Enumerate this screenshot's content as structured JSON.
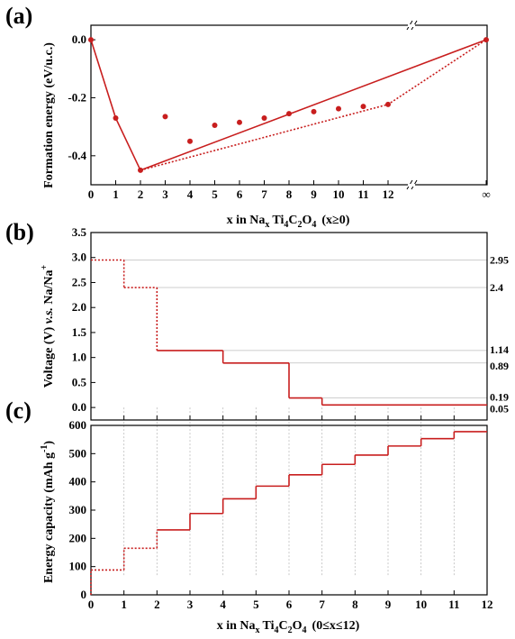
{
  "colors": {
    "series": "#c81e1e",
    "axis": "#000000",
    "grid": "#bdbdbd"
  },
  "chart_data": [
    {
      "id": "a",
      "type": "scatter",
      "panel_label": "(a)",
      "xlabel": {
        "pre": "x in Na",
        "x": "x",
        "ti": "Ti",
        "four": "4",
        "c": "C",
        "two": "2",
        "o": "O",
        "four2": "4",
        "post": "(x≥0)"
      },
      "ylabel": "Formation energy (eV/u.c.)",
      "xlim": [
        0,
        12
      ],
      "ylim": [
        -0.5,
        0.05
      ],
      "xticks": [
        "0",
        "1",
        "2",
        "3",
        "4",
        "5",
        "6",
        "7",
        "8",
        "9",
        "10",
        "11",
        "12"
      ],
      "xtick_inf": "∞",
      "yticks": [
        {
          "v": 0.0,
          "label": "0.0"
        },
        {
          "v": -0.2,
          "label": "-0.2"
        },
        {
          "v": -0.4,
          "label": "-0.4"
        }
      ],
      "points": [
        {
          "x": 0,
          "y": 0.0
        },
        {
          "x": 1,
          "y": -0.27
        },
        {
          "x": 2,
          "y": -0.45
        },
        {
          "x": 3,
          "y": -0.265
        },
        {
          "x": 4,
          "y": -0.35
        },
        {
          "x": 5,
          "y": -0.295
        },
        {
          "x": 6,
          "y": -0.285
        },
        {
          "x": 7,
          "y": -0.27
        },
        {
          "x": 8,
          "y": -0.255
        },
        {
          "x": 9,
          "y": -0.248
        },
        {
          "x": 10,
          "y": -0.238
        },
        {
          "x": 11,
          "y": -0.23
        },
        {
          "x": 12,
          "y": -0.223
        },
        {
          "x": "inf",
          "y": 0.0
        }
      ],
      "hull_solid": [
        [
          0,
          0.0
        ],
        [
          1,
          -0.27
        ],
        [
          2,
          -0.45
        ],
        [
          "inf",
          0.0
        ]
      ],
      "hull_dotted": [
        [
          2,
          -0.45
        ],
        [
          12,
          -0.223
        ],
        [
          "inf",
          0.0
        ]
      ]
    },
    {
      "id": "b",
      "type": "line",
      "panel_label": "(b)",
      "ylabel": {
        "pre": "Voltage (V) ",
        "vs": "v.s.",
        "post": " Na/Na",
        "sup": "+"
      },
      "xlim": [
        0,
        12
      ],
      "ylim": [
        -0.25,
        3.5
      ],
      "yticks": [
        "0.0",
        "0.5",
        "1.0",
        "1.5",
        "2.0",
        "2.5",
        "3.0",
        "3.5"
      ],
      "steps": [
        {
          "x0": 0,
          "x1": 1,
          "v": 2.95,
          "style": "dotted"
        },
        {
          "x0": 1,
          "x1": 2,
          "v": 2.4,
          "style": "dotted"
        },
        {
          "x0": 2,
          "x1": 4,
          "v": 1.14,
          "style": "solid"
        },
        {
          "x0": 4,
          "x1": 6,
          "v": 0.89,
          "style": "solid"
        },
        {
          "x0": 6,
          "x1": 7,
          "v": 0.19,
          "style": "solid"
        },
        {
          "x0": 7,
          "x1": 12,
          "v": 0.05,
          "style": "solid"
        }
      ],
      "right_labels": [
        "2.95",
        "2.4",
        "1.14",
        "0.89",
        "0.19",
        "0.05"
      ]
    },
    {
      "id": "c",
      "type": "line",
      "panel_label": "(c)",
      "xlabel": {
        "pre": "x in Na",
        "x": "x",
        "ti": "Ti",
        "four": "4",
        "c": "C",
        "two": "2",
        "o": "O",
        "four2": "4",
        "post": "(0≤x≤12)"
      },
      "ylabel": {
        "pre": "Energy capacity (mAh g",
        "sup": "-1",
        "post": ")"
      },
      "xlim": [
        0,
        12
      ],
      "ylim": [
        0,
        600
      ],
      "xticks": [
        "0",
        "1",
        "2",
        "3",
        "4",
        "5",
        "6",
        "7",
        "8",
        "9",
        "10",
        "11",
        "12"
      ],
      "yticks": [
        "0",
        "100",
        "200",
        "300",
        "400",
        "500",
        "600"
      ],
      "steps": [
        {
          "x0": 0,
          "x1": 1,
          "v": 88,
          "style": "dotted"
        },
        {
          "x0": 1,
          "x1": 2,
          "v": 165,
          "style": "dotted"
        },
        {
          "x0": 2,
          "x1": 3,
          "v": 230,
          "style": "solid"
        },
        {
          "x0": 3,
          "x1": 4,
          "v": 288,
          "style": "solid"
        },
        {
          "x0": 4,
          "x1": 5,
          "v": 340,
          "style": "solid"
        },
        {
          "x0": 5,
          "x1": 6,
          "v": 385,
          "style": "solid"
        },
        {
          "x0": 6,
          "x1": 7,
          "v": 425,
          "style": "solid"
        },
        {
          "x0": 7,
          "x1": 8,
          "v": 462,
          "style": "solid"
        },
        {
          "x0": 8,
          "x1": 9,
          "v": 495,
          "style": "solid"
        },
        {
          "x0": 9,
          "x1": 10,
          "v": 527,
          "style": "solid"
        },
        {
          "x0": 10,
          "x1": 11,
          "v": 553,
          "style": "solid"
        },
        {
          "x0": 11,
          "x1": 12,
          "v": 578,
          "style": "solid"
        }
      ]
    }
  ]
}
